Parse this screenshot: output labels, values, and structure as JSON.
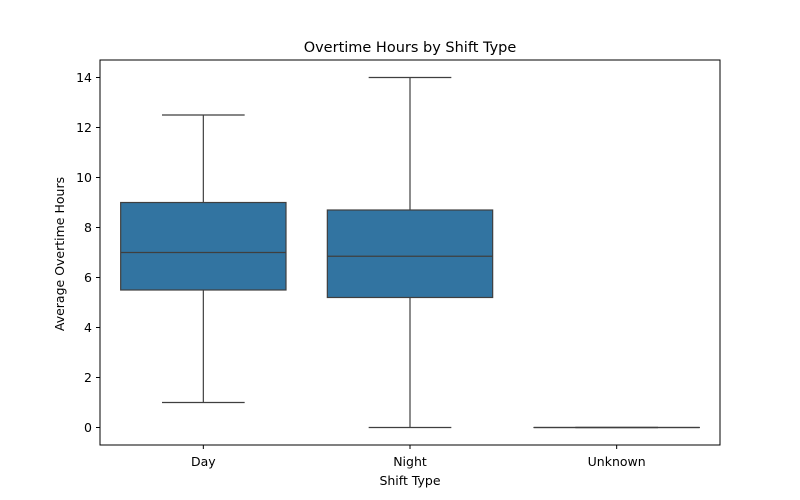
{
  "chart_data": {
    "type": "box",
    "title": "Overtime Hours by Shift Type",
    "xlabel": "Shift Type",
    "ylabel": "Average Overtime Hours",
    "ylim": [
      -0.7,
      14.7
    ],
    "yticks": [
      0,
      2,
      4,
      6,
      8,
      10,
      12,
      14
    ],
    "grid": false,
    "categories": [
      "Day",
      "Night",
      "Unknown"
    ],
    "boxes": [
      {
        "category": "Day",
        "whisker_low": 1.0,
        "q1": 5.5,
        "median": 7.0,
        "q3": 9.0,
        "whisker_high": 12.5
      },
      {
        "category": "Night",
        "whisker_low": 0.0,
        "q1": 5.2,
        "median": 6.85,
        "q3": 8.7,
        "whisker_high": 14.0
      },
      {
        "category": "Unknown",
        "whisker_low": 0.0,
        "q1": 0.0,
        "median": 0.0,
        "q3": 0.0,
        "whisker_high": 0.0
      }
    ],
    "colors": {
      "box_fill": "#3274a1",
      "line": "#3f3f3f"
    }
  }
}
